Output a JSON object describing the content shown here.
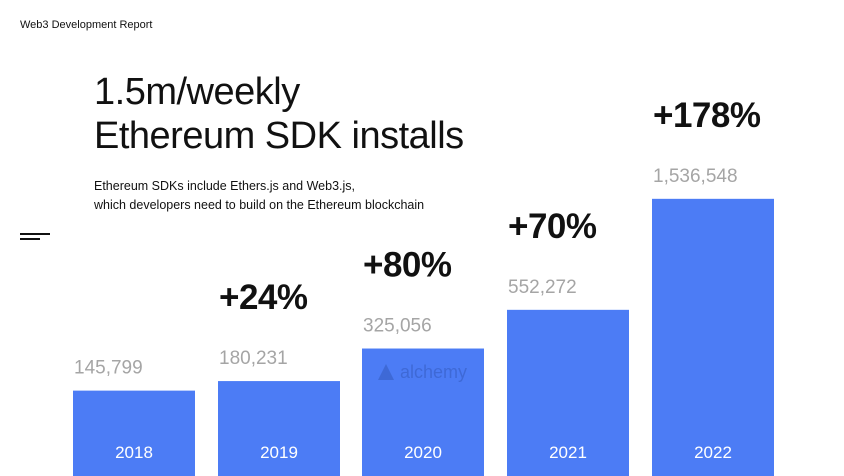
{
  "header": {
    "report_label": "Web3 Development Report"
  },
  "headline": {
    "line1": "1.5m/weekly",
    "line2": "Ethereum SDK installs"
  },
  "description": {
    "line1": "Ethereum SDKs include Ethers.js and Web3.js,",
    "line2": "which developers need to build on the Ethereum blockchain"
  },
  "watermark": {
    "text": "alchemy"
  },
  "icons": {
    "menu": "menu-lines-icon",
    "watermark_logo": "alchemy-logo-icon"
  },
  "colors": {
    "bar": "#4c7cf5",
    "value_label": "#a5a5a5",
    "growth_label": "#111111",
    "category_label": "#ffffff"
  },
  "chart_data": {
    "type": "bar",
    "categories": [
      "2018",
      "2019",
      "2020",
      "2021",
      "2022"
    ],
    "values": [
      145799,
      180231,
      325056,
      552272,
      1536548
    ],
    "value_labels": [
      "145,799",
      "180,231",
      "325,056",
      "552,272",
      "1,536,548"
    ],
    "growth_labels": [
      "",
      "+24%",
      "+80%",
      "+70%",
      "+178%"
    ],
    "title": "1.5m/weekly Ethereum SDK installs",
    "xlabel": "",
    "ylabel": "",
    "grid": false,
    "legend": "none"
  }
}
